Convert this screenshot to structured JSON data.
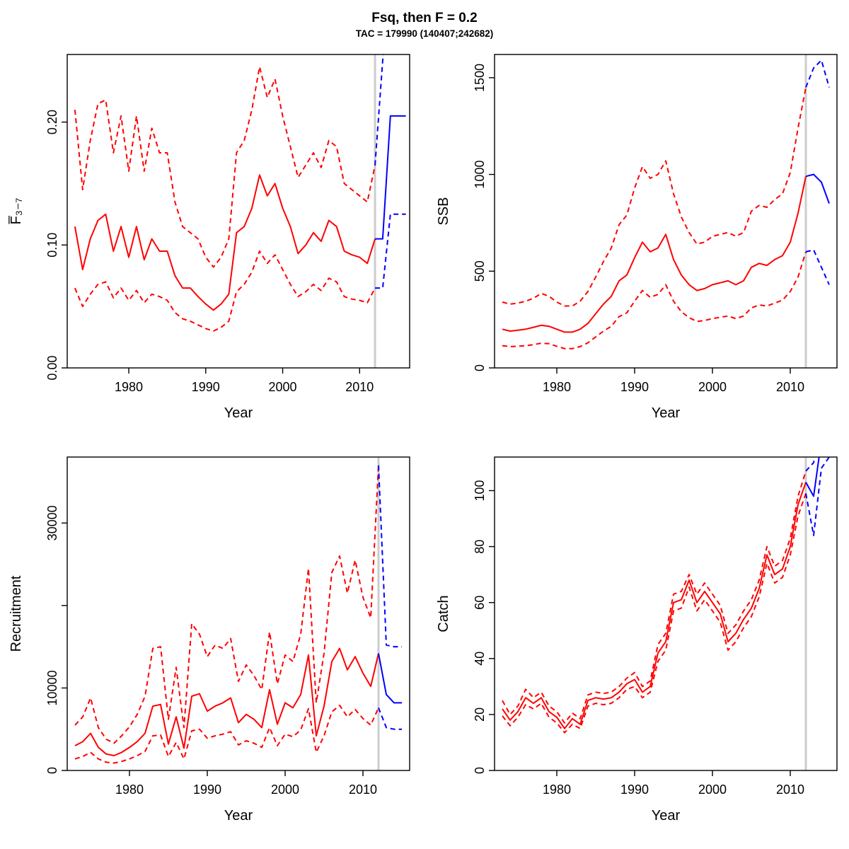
{
  "title": "Fsq, then F = 0.2",
  "subtitle": "TAC = 179990 (140407;242682)",
  "chart_data": [
    {
      "type": "line",
      "name": "fbar",
      "ylabel": "F̅₃₋₇",
      "xlabel": "Year",
      "xlim": [
        1972,
        2016.5
      ],
      "ylim": [
        0,
        0.255
      ],
      "xticks": [
        1980,
        1990,
        2000,
        2010
      ],
      "yticks": [
        0,
        0.1,
        0.2
      ],
      "ytick_labels": [
        "0.00",
        "0.10",
        "0.20"
      ],
      "vline": 2012,
      "vline_color": "#CCCCCC",
      "series": [
        {
          "name": "ci-upper-history",
          "color": "#FF0000",
          "dash": true,
          "x_start": 1973,
          "values": [
            0.21,
            0.145,
            0.185,
            0.215,
            0.218,
            0.175,
            0.205,
            0.16,
            0.205,
            0.16,
            0.195,
            0.175,
            0.175,
            0.135,
            0.115,
            0.11,
            0.105,
            0.09,
            0.082,
            0.09,
            0.105,
            0.175,
            0.185,
            0.21,
            0.245,
            0.22,
            0.235,
            0.205,
            0.18,
            0.155,
            0.165,
            0.175,
            0.163,
            0.185,
            0.18,
            0.15,
            0.145,
            0.14,
            0.135,
            0.165
          ]
        },
        {
          "name": "ci-lower-history",
          "color": "#FF0000",
          "dash": true,
          "x_start": 1973,
          "values": [
            0.065,
            0.05,
            0.06,
            0.068,
            0.07,
            0.057,
            0.065,
            0.055,
            0.063,
            0.053,
            0.06,
            0.058,
            0.055,
            0.045,
            0.04,
            0.038,
            0.035,
            0.032,
            0.03,
            0.033,
            0.038,
            0.062,
            0.068,
            0.078,
            0.095,
            0.085,
            0.092,
            0.08,
            0.068,
            0.058,
            0.062,
            0.068,
            0.063,
            0.073,
            0.07,
            0.058,
            0.056,
            0.055,
            0.053,
            0.065
          ]
        },
        {
          "name": "median-history",
          "color": "#FF0000",
          "dash": false,
          "x_start": 1973,
          "values": [
            0.115,
            0.08,
            0.105,
            0.12,
            0.125,
            0.095,
            0.115,
            0.09,
            0.115,
            0.088,
            0.105,
            0.095,
            0.095,
            0.075,
            0.065,
            0.065,
            0.058,
            0.052,
            0.047,
            0.052,
            0.06,
            0.11,
            0.115,
            0.13,
            0.157,
            0.14,
            0.15,
            0.13,
            0.115,
            0.093,
            0.1,
            0.11,
            0.103,
            0.12,
            0.115,
            0.095,
            0.092,
            0.09,
            0.085,
            0.105
          ]
        },
        {
          "name": "ci-upper-forecast",
          "color": "#0000FF",
          "dash": true,
          "x_start": 2012,
          "values": [
            0.165,
            0.25,
            0.31,
            0.31,
            0.31
          ]
        },
        {
          "name": "ci-lower-forecast",
          "color": "#0000FF",
          "dash": true,
          "x_start": 2012,
          "values": [
            0.065,
            0.065,
            0.125,
            0.125,
            0.125
          ]
        },
        {
          "name": "median-forecast",
          "color": "#0000FF",
          "dash": false,
          "x_start": 2012,
          "values": [
            0.105,
            0.105,
            0.205,
            0.205,
            0.205
          ]
        }
      ]
    },
    {
      "type": "line",
      "name": "ssb",
      "ylabel": "SSB",
      "xlabel": "Year",
      "xlim": [
        1972,
        2016
      ],
      "ylim": [
        0,
        1620
      ],
      "xticks": [
        1980,
        1990,
        2000,
        2010
      ],
      "yticks": [
        0,
        500,
        1000,
        1500
      ],
      "vline": 2012,
      "vline_color": "#CCCCCC",
      "series": [
        {
          "name": "ci-upper-history",
          "color": "#FF0000",
          "dash": true,
          "x_start": 1973,
          "values": [
            340,
            330,
            335,
            345,
            360,
            385,
            370,
            340,
            320,
            320,
            345,
            395,
            470,
            550,
            620,
            740,
            790,
            930,
            1040,
            980,
            1000,
            1070,
            900,
            780,
            700,
            640,
            650,
            680,
            690,
            700,
            680,
            700,
            810,
            840,
            830,
            870,
            900,
            1010,
            1240,
            1450
          ]
        },
        {
          "name": "ci-lower-history",
          "color": "#FF0000",
          "dash": true,
          "x_start": 1973,
          "values": [
            115,
            110,
            112,
            115,
            120,
            128,
            125,
            112,
            100,
            100,
            110,
            130,
            160,
            190,
            215,
            265,
            285,
            345,
            400,
            365,
            380,
            430,
            345,
            290,
            260,
            240,
            245,
            255,
            262,
            268,
            255,
            268,
            310,
            325,
            320,
            335,
            350,
            395,
            470,
            600
          ]
        },
        {
          "name": "median-history",
          "color": "#FF0000",
          "dash": false,
          "x_start": 1973,
          "values": [
            200,
            190,
            195,
            200,
            210,
            220,
            215,
            200,
            185,
            185,
            200,
            230,
            280,
            330,
            370,
            450,
            480,
            570,
            650,
            600,
            620,
            690,
            560,
            480,
            430,
            400,
            410,
            430,
            440,
            450,
            430,
            450,
            520,
            540,
            530,
            560,
            580,
            650,
            800,
            990
          ]
        },
        {
          "name": "ci-upper-forecast",
          "color": "#0000FF",
          "dash": true,
          "x_start": 2012,
          "values": [
            1450,
            1550,
            1590,
            1450
          ]
        },
        {
          "name": "ci-lower-forecast",
          "color": "#0000FF",
          "dash": true,
          "x_start": 2012,
          "values": [
            600,
            610,
            520,
            430
          ]
        },
        {
          "name": "median-forecast",
          "color": "#0000FF",
          "dash": false,
          "x_start": 2012,
          "values": [
            990,
            1000,
            960,
            850
          ]
        }
      ]
    },
    {
      "type": "line",
      "name": "recruitment",
      "ylabel": "Recruitment",
      "xlabel": "Year",
      "xlim": [
        1972,
        2016
      ],
      "ylim": [
        0,
        38000
      ],
      "xticks": [
        1980,
        1990,
        2000,
        2010
      ],
      "yticks": [
        0,
        10000,
        20000,
        30000
      ],
      "ytick_labels": [
        "0",
        "10000",
        "",
        "30000"
      ],
      "vline": 2012,
      "vline_color": "#CCCCCC",
      "series": [
        {
          "name": "ci-upper-history",
          "color": "#FF0000",
          "dash": true,
          "x_start": 1973,
          "values": [
            5500,
            6500,
            8800,
            5200,
            3800,
            3300,
            4200,
            5300,
            6800,
            9000,
            14800,
            15000,
            6200,
            12500,
            5200,
            17800,
            16500,
            13800,
            15200,
            14800,
            16000,
            10800,
            12800,
            11500,
            9800,
            16800,
            10500,
            14000,
            13200,
            16500,
            24500,
            8200,
            14200,
            24000,
            26000,
            21500,
            25500,
            21000,
            18500,
            37000
          ]
        },
        {
          "name": "ci-lower-history",
          "color": "#FF0000",
          "dash": true,
          "x_start": 1973,
          "values": [
            1400,
            1700,
            2200,
            1400,
            1000,
            900,
            1100,
            1400,
            1800,
            2300,
            4200,
            4300,
            1700,
            3400,
            1400,
            4800,
            5000,
            3900,
            4200,
            4400,
            4700,
            3100,
            3600,
            3300,
            2800,
            5200,
            3000,
            4400,
            4100,
            4900,
            7500,
            2200,
            4200,
            7100,
            7900,
            6500,
            7400,
            6300,
            5500,
            7600
          ]
        },
        {
          "name": "median-history",
          "color": "#FF0000",
          "dash": false,
          "x_start": 1973,
          "values": [
            3000,
            3500,
            4500,
            2800,
            2000,
            1800,
            2200,
            2800,
            3500,
            4500,
            7800,
            8000,
            3200,
            6500,
            2700,
            9000,
            9300,
            7200,
            7800,
            8200,
            8800,
            5800,
            6800,
            6200,
            5200,
            9800,
            5600,
            8200,
            7600,
            9200,
            14000,
            4200,
            7800,
            13200,
            14800,
            12200,
            13800,
            11800,
            10200,
            14200
          ]
        },
        {
          "name": "ci-upper-forecast",
          "color": "#0000FF",
          "dash": true,
          "x_start": 2012,
          "values": [
            37000,
            15200,
            15000,
            15000
          ]
        },
        {
          "name": "ci-lower-forecast",
          "color": "#0000FF",
          "dash": true,
          "x_start": 2012,
          "values": [
            7600,
            5200,
            5000,
            5000
          ]
        },
        {
          "name": "median-forecast",
          "color": "#0000FF",
          "dash": false,
          "x_start": 2012,
          "values": [
            14200,
            9200,
            8200,
            8200
          ]
        }
      ]
    },
    {
      "type": "line",
      "name": "catch",
      "ylabel": "Catch",
      "xlabel": "Year",
      "xlim": [
        1972,
        2016
      ],
      "ylim": [
        0,
        112
      ],
      "xticks": [
        1980,
        1990,
        2000,
        2010
      ],
      "yticks": [
        0,
        20,
        40,
        60,
        80,
        100
      ],
      "vline": 2012,
      "vline_color": "#CCCCCC",
      "series": [
        {
          "name": "ci-upper-history",
          "color": "#FF0000",
          "dash": true,
          "x_start": 1973,
          "values": [
            25,
            20,
            23,
            29,
            26,
            28,
            23,
            21,
            17,
            20.5,
            18.5,
            27,
            28,
            27.5,
            28,
            30,
            33,
            35,
            30,
            32,
            45,
            49,
            63,
            64,
            70,
            63,
            67,
            63,
            59,
            49,
            52,
            57,
            61,
            68,
            80,
            73,
            75,
            83,
            98,
            107
          ]
        },
        {
          "name": "ci-lower-history",
          "color": "#FF0000",
          "dash": true,
          "x_start": 1973,
          "values": [
            19.5,
            16,
            19,
            23.5,
            22,
            24,
            19,
            17,
            13.5,
            16.5,
            15,
            23,
            24,
            23.5,
            24,
            26,
            29,
            30,
            26,
            28,
            39,
            43,
            57,
            58,
            65.5,
            57,
            61,
            57,
            53,
            43,
            46,
            51,
            55,
            62,
            74,
            67,
            69,
            77,
            91,
            99
          ]
        },
        {
          "name": "median-history",
          "color": "#FF0000",
          "dash": false,
          "x_start": 1973,
          "values": [
            22,
            18,
            21,
            26,
            24,
            26,
            21,
            19,
            15,
            18.5,
            16.5,
            25,
            26,
            25.5,
            26,
            28,
            31,
            32.5,
            28,
            30,
            42,
            46,
            60,
            61,
            68,
            60,
            64,
            60,
            56,
            46,
            49,
            54,
            58,
            65,
            77,
            70,
            72,
            80,
            95,
            103
          ]
        },
        {
          "name": "ci-upper-forecast",
          "color": "#0000FF",
          "dash": true,
          "x_start": 2012,
          "values": [
            107,
            110,
            125,
            125
          ]
        },
        {
          "name": "ci-lower-forecast",
          "color": "#0000FF",
          "dash": true,
          "x_start": 2012,
          "values": [
            99,
            84,
            108,
            112
          ]
        },
        {
          "name": "median-forecast",
          "color": "#0000FF",
          "dash": false,
          "x_start": 2012,
          "values": [
            103,
            98,
            118,
            118
          ]
        }
      ]
    }
  ]
}
